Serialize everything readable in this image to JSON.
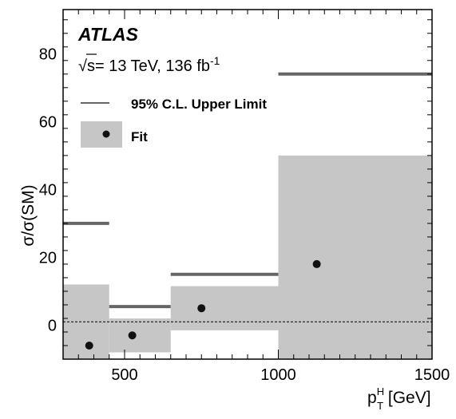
{
  "chart_data": {
    "type": "bar",
    "experiment": "ATLAS",
    "energy_label": "= 13 TeV, 136 fb",
    "lumi_exponent": "-1",
    "sqrt_symbol": "√s",
    "xlabel": {
      "main": "p",
      "sup": "H",
      "sub": "T",
      "unit": " [GeV]"
    },
    "ylabel": "σ/σ(SM)",
    "xlim": [
      300,
      1500
    ],
    "ylim": [
      -10,
      93
    ],
    "xticks": [
      500,
      1000,
      1500
    ],
    "yticks": [
      0,
      20,
      40,
      60,
      80
    ],
    "reference_line": 1,
    "legend": {
      "position": "top-left",
      "entries": [
        {
          "label": "95% C.L. Upper Limit",
          "style": "line"
        },
        {
          "label": "Fit",
          "style": "point-band"
        }
      ]
    },
    "series": [
      {
        "name": "Fit",
        "bins": [
          {
            "xlow": 300,
            "xhigh": 450,
            "x": 385,
            "central": -6,
            "band_low": -10,
            "band_high": 12
          },
          {
            "xlow": 450,
            "xhigh": 650,
            "x": 525,
            "central": -3,
            "band_low": -8,
            "band_high": 2
          },
          {
            "xlow": 650,
            "xhigh": 1000,
            "x": 750,
            "central": 5,
            "band_low": -1.5,
            "band_high": 11.5
          },
          {
            "xlow": 1000,
            "xhigh": 1500,
            "x": 1125,
            "central": 18,
            "band_low": -10,
            "band_high": 50
          }
        ]
      },
      {
        "name": "95% C.L. Upper Limit",
        "bins": [
          {
            "xlow": 300,
            "xhigh": 450,
            "value": 30
          },
          {
            "xlow": 450,
            "xhigh": 650,
            "value": 5.5
          },
          {
            "xlow": 650,
            "xhigh": 1000,
            "value": 15
          },
          {
            "xlow": 1000,
            "xhigh": 1500,
            "value": 74
          }
        ]
      }
    ],
    "colors": {
      "band": "#c6c6c6",
      "limit": "#666666",
      "point": "#111111",
      "frame": "#000000"
    }
  }
}
